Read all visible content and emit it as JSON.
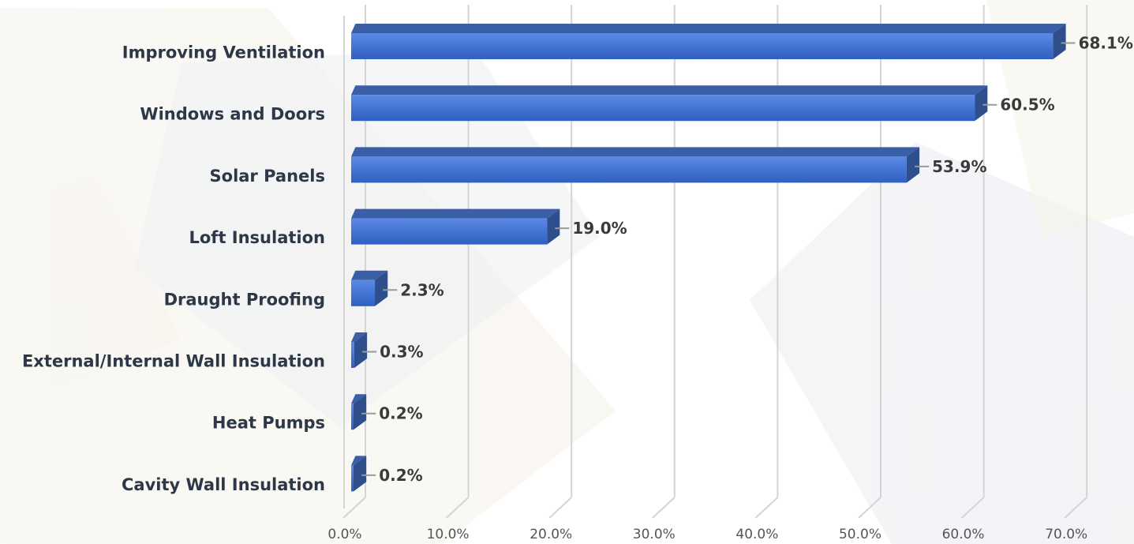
{
  "chart_data": {
    "type": "bar",
    "orientation": "horizontal",
    "style": "3d",
    "categories": [
      "Improving Ventilation",
      "Windows and Doors",
      "Solar Panels",
      "Loft Insulation",
      "Draught Proofing",
      "External/Internal Wall Insulation",
      "Heat Pumps",
      "Cavity Wall Insulation"
    ],
    "values": [
      68.1,
      60.5,
      53.9,
      19.0,
      2.3,
      0.3,
      0.2,
      0.2
    ],
    "value_labels": [
      "68.1%",
      "60.5%",
      "53.9%",
      "19.0%",
      "2.3%",
      "0.3%",
      "0.2%",
      "0.2%"
    ],
    "xticks": [
      "0.0%",
      "10.0%",
      "20.0%",
      "30.0%",
      "40.0%",
      "50.0%",
      "60.0%",
      "70.0%"
    ],
    "xlim": [
      0,
      70
    ],
    "grid": true,
    "legend": false,
    "title": "",
    "xlabel": "",
    "ylabel": "",
    "colors": {
      "bar_front": "#3d6fd0",
      "bar_top": "#3a5fa6",
      "bar_side": "#2e4f8c",
      "grid": "#d4d4d4",
      "category_text": "#2c3748",
      "value_text": "#3a3a3a",
      "tick_text": "#555555"
    }
  }
}
